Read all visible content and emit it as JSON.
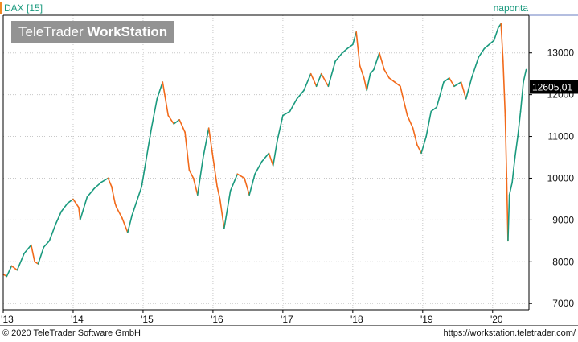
{
  "header": {
    "title": "DAX [15]",
    "period_label": "naponta",
    "watermark_normal": "TeleTrader ",
    "watermark_bold": "WorkStation"
  },
  "footer": {
    "copyright": "© 2020 TeleTrader Software GmbH",
    "url": "https://workstation.teletrader.com/"
  },
  "colors": {
    "up": "#1a9a7e",
    "down": "#f26a1b",
    "grid": "#c8c8c8",
    "axis": "#000000",
    "price_tag_bg": "#000000",
    "price_tag_fg": "#ffffff"
  },
  "chart_data": {
    "type": "line",
    "title": "DAX [15]",
    "xlabel": "",
    "ylabel": "",
    "x_ticks": [
      "'13",
      "'14",
      "'15",
      "'16",
      "'17",
      "'18",
      "'19",
      "'20"
    ],
    "y_ticks": [
      7000,
      8000,
      9000,
      10000,
      11000,
      12000,
      13000
    ],
    "ylim": [
      6850,
      13900
    ],
    "xlim": [
      2013.0,
      2020.52
    ],
    "grid": true,
    "last_price": "12605,01",
    "series": [
      {
        "x": [
          2013.0,
          2013.05,
          2013.12,
          2013.2,
          2013.3,
          2013.4,
          2013.45,
          2013.5,
          2013.58,
          2013.66,
          2013.75,
          2013.83,
          2013.92,
          2014.0,
          2014.08,
          2014.1,
          2014.2,
          2014.3,
          2014.4,
          2014.5,
          2014.55,
          2014.6,
          2014.62,
          2014.7,
          2014.78,
          2014.84,
          2014.9,
          2014.98,
          2015.05,
          2015.12,
          2015.2,
          2015.28,
          2015.36,
          2015.44,
          2015.52,
          2015.6,
          2015.66,
          2015.72,
          2015.78,
          2015.86,
          2015.94,
          2016.0,
          2016.06,
          2016.1,
          2016.16,
          2016.25,
          2016.35,
          2016.45,
          2016.52,
          2016.6,
          2016.7,
          2016.8,
          2016.86,
          2016.92,
          2017.0,
          2017.1,
          2017.2,
          2017.3,
          2017.4,
          2017.48,
          2017.55,
          2017.65,
          2017.75,
          2017.85,
          2017.92,
          2018.0,
          2018.05,
          2018.1,
          2018.16,
          2018.2,
          2018.25,
          2018.3,
          2018.38,
          2018.45,
          2018.52,
          2018.6,
          2018.68,
          2018.78,
          2018.86,
          2018.92,
          2018.98,
          2019.05,
          2019.12,
          2019.2,
          2019.3,
          2019.38,
          2019.45,
          2019.55,
          2019.62,
          2019.7,
          2019.8,
          2019.88,
          2019.95,
          2020.02,
          2020.08,
          2020.12,
          2020.15,
          2020.18,
          2020.2,
          2020.22,
          2020.24,
          2020.28,
          2020.32,
          2020.36,
          2020.4,
          2020.44,
          2020.48
        ],
        "y": [
          7700,
          7650,
          7900,
          7800,
          8200,
          8400,
          8000,
          7950,
          8350,
          8500,
          8900,
          9200,
          9400,
          9500,
          9300,
          9000,
          9550,
          9750,
          9900,
          10000,
          9800,
          9400,
          9300,
          9050,
          8700,
          9100,
          9400,
          9800,
          10500,
          11200,
          11900,
          12300,
          11500,
          11300,
          11400,
          11100,
          10200,
          10000,
          9600,
          10500,
          11200,
          10500,
          9800,
          9500,
          8800,
          9700,
          10100,
          10000,
          9600,
          10100,
          10400,
          10600,
          10300,
          10900,
          11500,
          11600,
          11900,
          12100,
          12500,
          12200,
          12500,
          12200,
          12800,
          13000,
          13100,
          13200,
          13500,
          12700,
          12400,
          12100,
          12500,
          12600,
          13000,
          12600,
          12400,
          12300,
          12200,
          11500,
          11200,
          10800,
          10600,
          11000,
          11600,
          11700,
          12300,
          12400,
          12200,
          12300,
          11900,
          12400,
          12900,
          13100,
          13200,
          13300,
          13600,
          13700,
          12800,
          11500,
          10100,
          8500,
          9600,
          9900,
          10500,
          11000,
          11600,
          12300,
          12600
        ]
      }
    ]
  }
}
